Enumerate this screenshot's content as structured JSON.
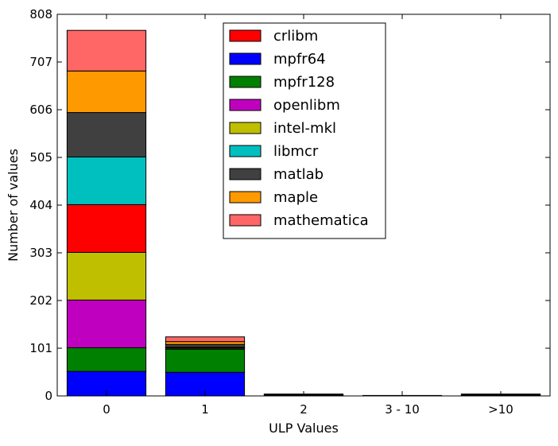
{
  "chart_data": {
    "type": "bar",
    "stacked": true,
    "title": "",
    "xlabel": "ULP Values",
    "ylabel": "Number of values",
    "categories": [
      "0",
      "1",
      "2",
      "3 - 10",
      ">10"
    ],
    "ylim": [
      0,
      808
    ],
    "yticks": [
      0,
      101,
      202,
      303,
      404,
      505,
      606,
      707,
      808
    ],
    "legend_placement": "top-center",
    "grid": false,
    "series": [
      {
        "name": "mpfr64",
        "color": "#0000ff",
        "values": [
          52,
          50,
          0,
          0,
          0
        ]
      },
      {
        "name": "mpfr128",
        "color": "#008000",
        "values": [
          50,
          49,
          0,
          0,
          0
        ]
      },
      {
        "name": "openlibm",
        "color": "#bf00bf",
        "values": [
          101,
          0,
          0,
          0,
          0
        ]
      },
      {
        "name": "intel-mkl",
        "color": "#bfbf00",
        "values": [
          101,
          2,
          1,
          0,
          1
        ]
      },
      {
        "name": "crlibm",
        "color": "#ff0000",
        "values": [
          101,
          1,
          0,
          0,
          0
        ]
      },
      {
        "name": "libmcr",
        "color": "#00bfbf",
        "values": [
          101,
          1,
          0,
          0,
          0
        ]
      },
      {
        "name": "matlab",
        "color": "#404040",
        "values": [
          94,
          6,
          2,
          1,
          2
        ]
      },
      {
        "name": "maple",
        "color": "#ff9900",
        "values": [
          88,
          6,
          1,
          0,
          1
        ]
      },
      {
        "name": "mathematica",
        "color": "#ff6666",
        "values": [
          86,
          10,
          0,
          0,
          0
        ]
      }
    ],
    "legend_order": [
      "crlibm",
      "mpfr64",
      "mpfr128",
      "openlibm",
      "intel-mkl",
      "libmcr",
      "matlab",
      "maple",
      "mathematica"
    ]
  }
}
